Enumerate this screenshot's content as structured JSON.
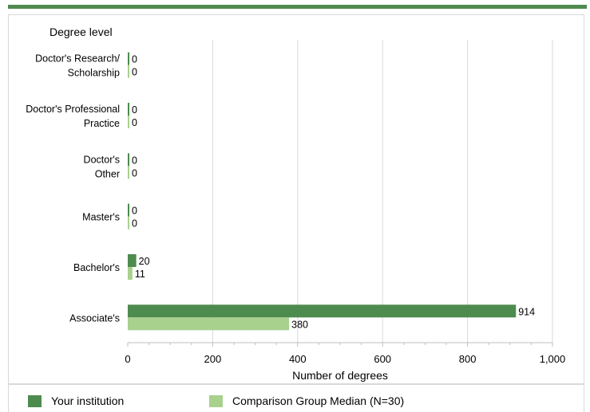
{
  "chart_data": {
    "type": "bar",
    "orientation": "horizontal",
    "ylabel": "Degree level",
    "xlabel": "Number of degrees",
    "xlim": [
      0,
      1000
    ],
    "xticks": [
      0,
      200,
      400,
      600,
      800,
      1000
    ],
    "xtick_labels": [
      "0",
      "200",
      "400",
      "600",
      "800",
      "1,000"
    ],
    "grid": true,
    "legend_position": "bottom",
    "categories": [
      [
        "Doctor's Research/",
        "Scholarship"
      ],
      [
        "Doctor's Professional",
        "Practice"
      ],
      [
        "Doctor's",
        "Other"
      ],
      [
        "Master's"
      ],
      [
        "Bachelor's"
      ],
      [
        "Associate's"
      ]
    ],
    "series": [
      {
        "name": "Your institution",
        "color": "#4e8b4e",
        "values": [
          0,
          0,
          0,
          0,
          20,
          914
        ]
      },
      {
        "name": "Comparison Group Median (N=30)",
        "color": "#a9d18e",
        "values": [
          0,
          0,
          0,
          0,
          11,
          380
        ]
      }
    ]
  }
}
